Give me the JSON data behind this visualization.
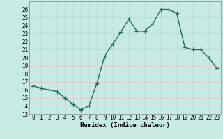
{
  "x": [
    0,
    1,
    2,
    3,
    4,
    5,
    6,
    7,
    8,
    9,
    10,
    11,
    12,
    13,
    14,
    15,
    16,
    17,
    18,
    19,
    20,
    21,
    22,
    23
  ],
  "y": [
    16.5,
    16.2,
    16.0,
    15.8,
    15.0,
    14.2,
    13.5,
    14.0,
    16.8,
    20.3,
    21.7,
    23.2,
    24.8,
    23.3,
    23.3,
    24.2,
    26.0,
    26.0,
    25.5,
    21.3,
    21.0,
    21.0,
    20.0,
    18.7
  ],
  "line_color": "#1a6b5a",
  "marker": "+",
  "markersize": 4,
  "linewidth": 1.0,
  "xlabel": "Humidex (Indice chaleur)",
  "bg_color": "#c8eae4",
  "plot_bg_color": "#c8eae4",
  "grid_color": "#e8c8c8",
  "ylim": [
    13,
    27
  ],
  "xlim": [
    -0.5,
    23.5
  ],
  "yticks": [
    13,
    14,
    15,
    16,
    17,
    18,
    19,
    20,
    21,
    22,
    23,
    24,
    25,
    26
  ],
  "xticks": [
    0,
    1,
    2,
    3,
    4,
    5,
    6,
    7,
    8,
    9,
    10,
    11,
    12,
    13,
    14,
    15,
    16,
    17,
    18,
    19,
    20,
    21,
    22,
    23
  ],
  "xlabel_fontsize": 6.5,
  "tick_fontsize": 5.5
}
